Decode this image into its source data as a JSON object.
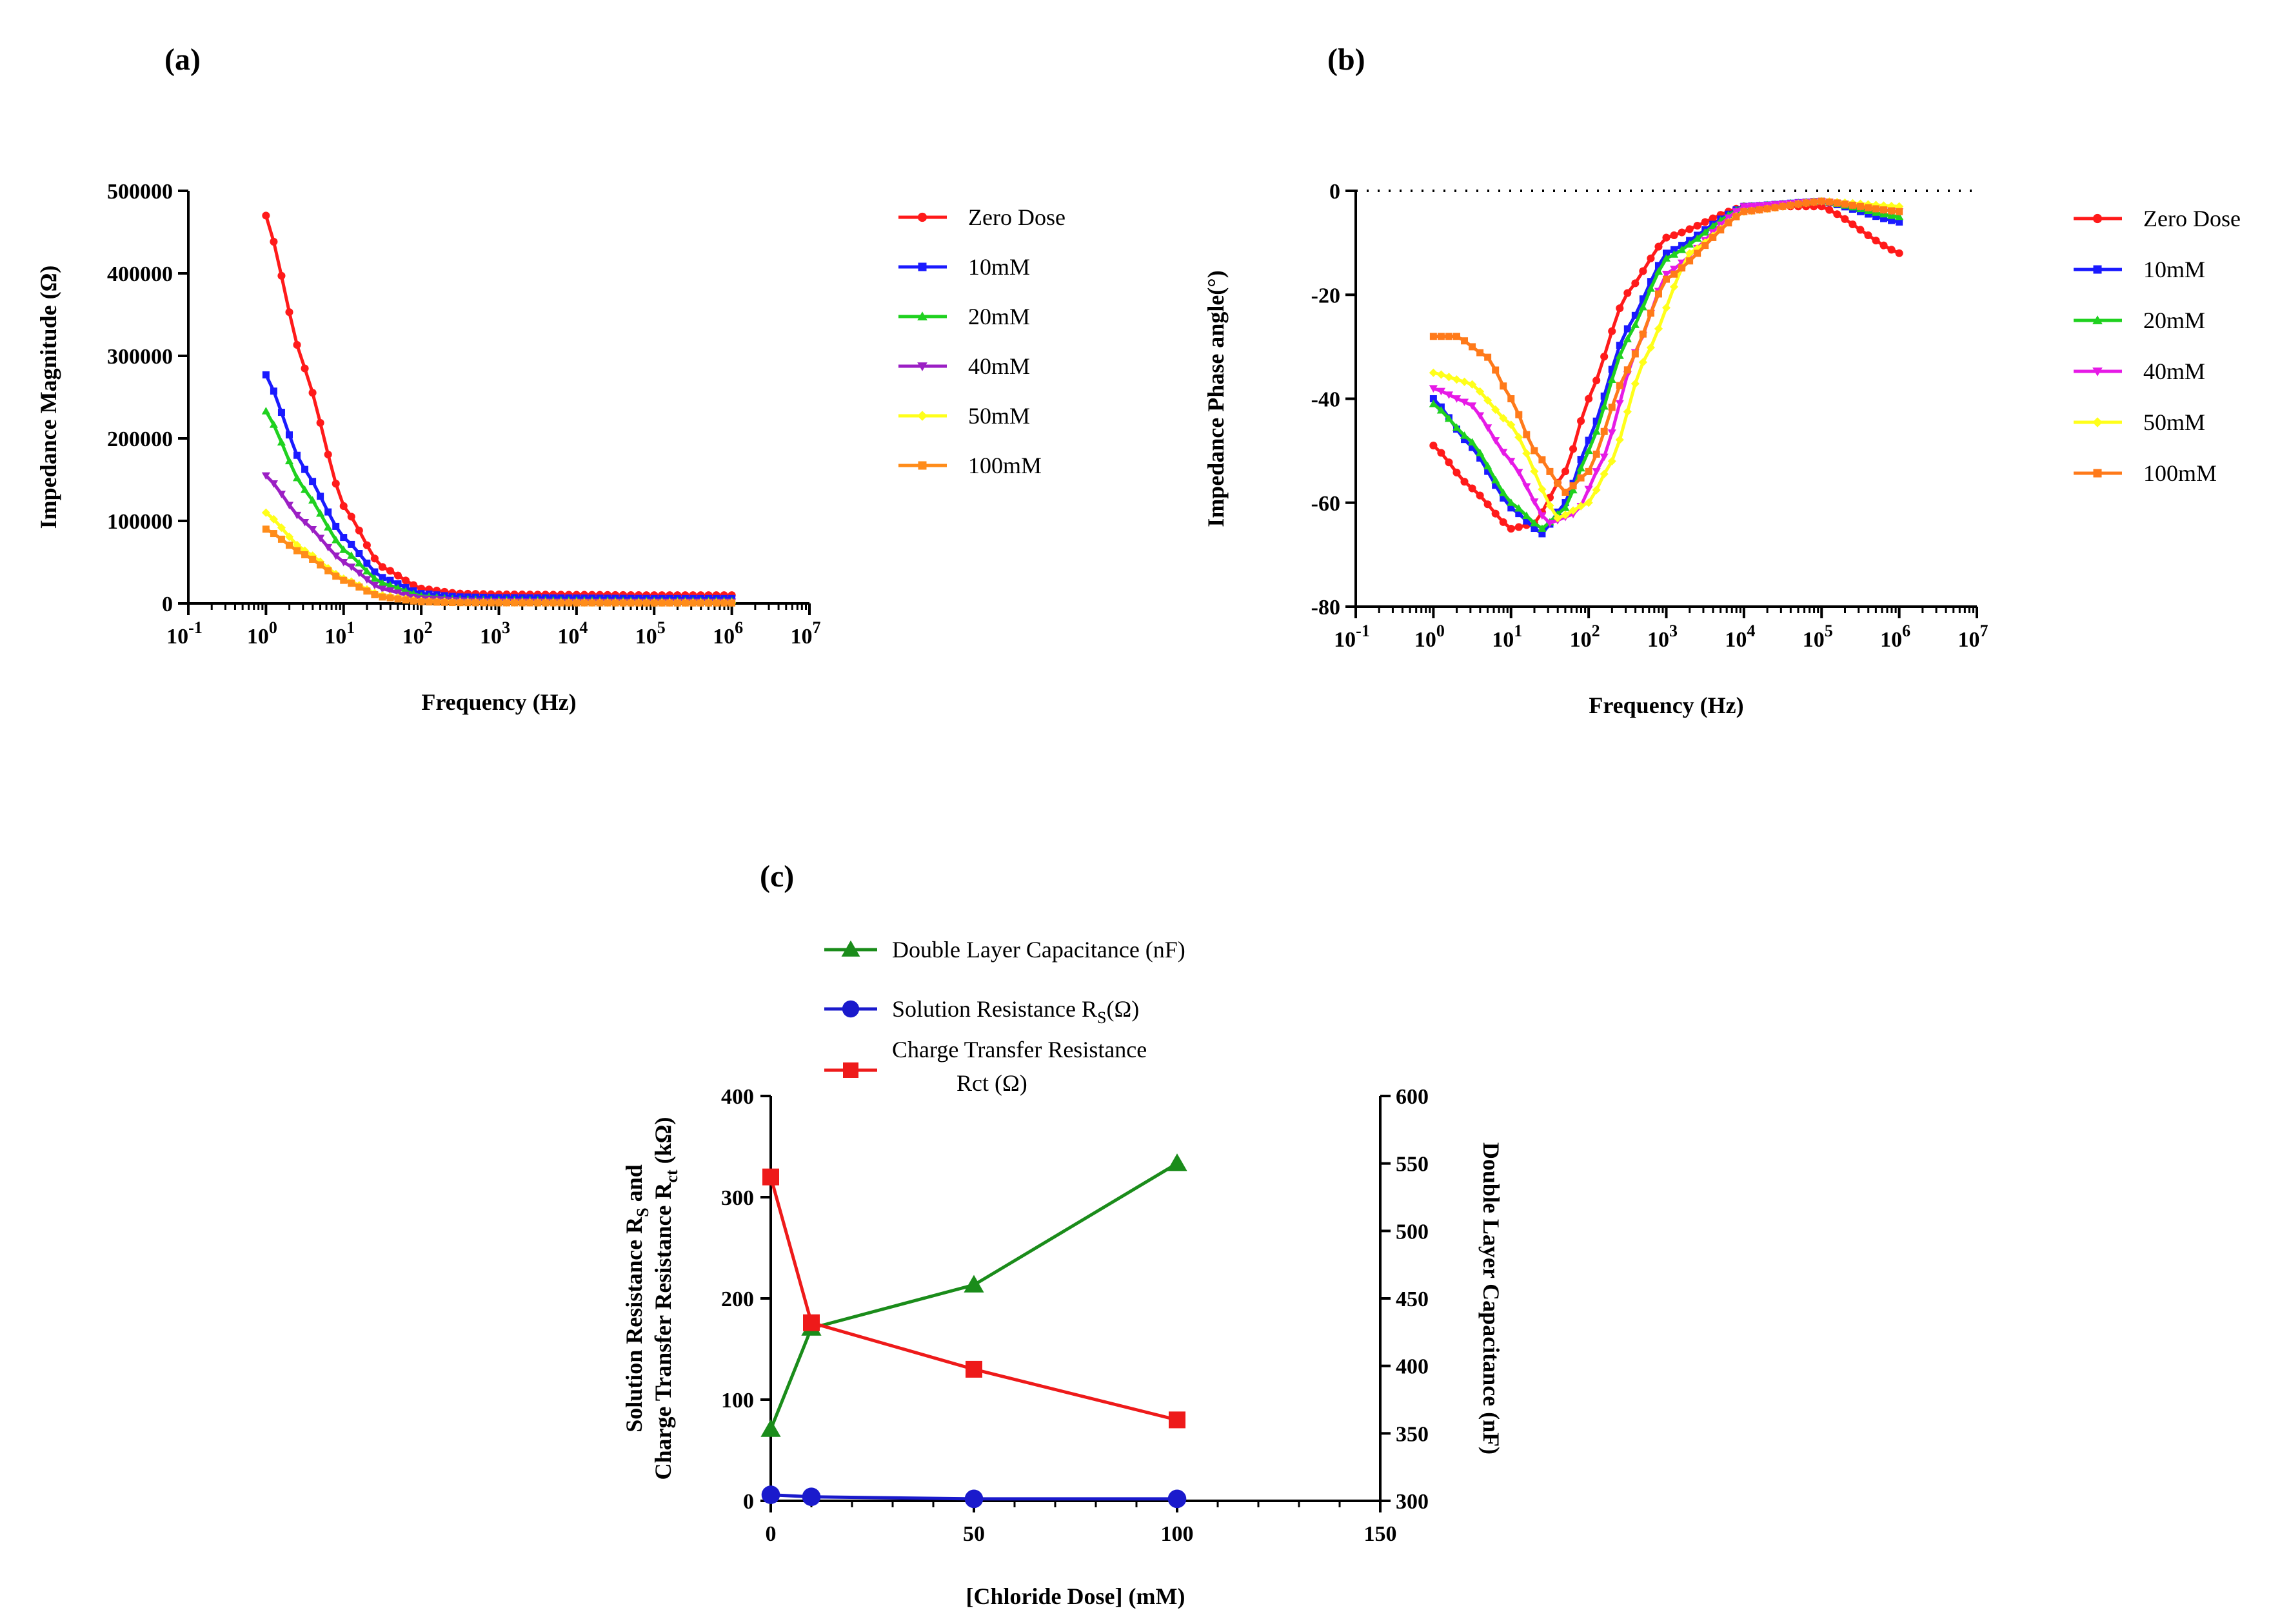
{
  "figure": {
    "panels": [
      "(a)",
      "(b)",
      "(c)"
    ]
  },
  "chart_data": [
    {
      "id": "a",
      "type": "line",
      "panel_label": "(a)",
      "xlabel": "Frequency (Hz)",
      "ylabel": "Impedance Magnitude (Ω)",
      "xscale": "log",
      "xlim": [
        0.1,
        10000000
      ],
      "ylim": [
        0,
        500000
      ],
      "x_ticks": [
        {
          "base": "10",
          "exp": "-1"
        },
        {
          "base": "10",
          "exp": "0"
        },
        {
          "base": "10",
          "exp": "1"
        },
        {
          "base": "10",
          "exp": "2"
        },
        {
          "base": "10",
          "exp": "3"
        },
        {
          "base": "10",
          "exp": "4"
        },
        {
          "base": "10",
          "exp": "5"
        },
        {
          "base": "10",
          "exp": "6"
        },
        {
          "base": "10",
          "exp": "7"
        }
      ],
      "y_ticks": [
        "0",
        "100000",
        "200000",
        "300000",
        "400000",
        "500000"
      ],
      "legend_position": "right",
      "series": [
        {
          "name": "Zero Dose",
          "color": "#ff1a1a",
          "marker": "circle",
          "x": [
            1,
            3,
            10,
            30,
            100,
            300,
            1000,
            10000,
            100000,
            1000000
          ],
          "y": [
            470000,
            290000,
            118000,
            45000,
            18000,
            12000,
            11000,
            10500,
            10000,
            10000
          ]
        },
        {
          "name": "10mM",
          "color": "#1a1aff",
          "marker": "square",
          "x": [
            1,
            3,
            10,
            30,
            100,
            300,
            1000,
            10000,
            100000,
            1000000
          ],
          "y": [
            277000,
            165000,
            80000,
            32000,
            12000,
            8000,
            7000,
            6500,
            6000,
            6000
          ]
        },
        {
          "name": "20mM",
          "color": "#1fd11f",
          "marker": "triangle",
          "x": [
            1,
            3,
            10,
            30,
            100,
            300,
            1000,
            10000,
            100000,
            1000000
          ],
          "y": [
            233000,
            140000,
            65000,
            25000,
            9000,
            5000,
            4000,
            3500,
            3000,
            3000
          ]
        },
        {
          "name": "40mM",
          "color": "#9b1fc4",
          "marker": "triangle-down",
          "x": [
            1,
            3,
            10,
            30,
            100,
            300,
            1000,
            10000,
            100000,
            1000000
          ],
          "y": [
            155000,
            100000,
            50000,
            18000,
            6000,
            3500,
            2500,
            2000,
            2000,
            2000
          ]
        },
        {
          "name": "50mM",
          "color": "#ffff1a",
          "marker": "diamond",
          "x": [
            1,
            3,
            10,
            30,
            100,
            300,
            1000,
            10000,
            100000,
            1000000
          ],
          "y": [
            110000,
            65000,
            30000,
            10000,
            3000,
            1500,
            1200,
            1000,
            1000,
            1000
          ]
        },
        {
          "name": "100mM",
          "color": "#ff8c1a",
          "marker": "square",
          "x": [
            1,
            3,
            10,
            30,
            100,
            300,
            1000,
            10000,
            100000,
            1000000
          ],
          "y": [
            90000,
            60000,
            28000,
            8000,
            2000,
            1000,
            800,
            700,
            600,
            600
          ]
        }
      ]
    },
    {
      "id": "b",
      "type": "line",
      "panel_label": "(b)",
      "xlabel": "Frequency (Hz)",
      "ylabel": "Impedance Phase angle(°)",
      "xscale": "log",
      "xlim": [
        0.1,
        10000000
      ],
      "ylim": [
        -80,
        0
      ],
      "x_ticks": [
        {
          "base": "10",
          "exp": "-1"
        },
        {
          "base": "10",
          "exp": "0"
        },
        {
          "base": "10",
          "exp": "1"
        },
        {
          "base": "10",
          "exp": "2"
        },
        {
          "base": "10",
          "exp": "3"
        },
        {
          "base": "10",
          "exp": "4"
        },
        {
          "base": "10",
          "exp": "5"
        },
        {
          "base": "10",
          "exp": "6"
        },
        {
          "base": "10",
          "exp": "7"
        }
      ],
      "y_ticks": [
        "-80",
        "-60",
        "-40",
        "-20",
        "0"
      ],
      "zero_reference_line": true,
      "legend_position": "right",
      "series": [
        {
          "name": "Zero Dose",
          "color": "#ff1a1a",
          "marker": "circle",
          "x": [
            1,
            3,
            10,
            20,
            50,
            100,
            300,
            1000,
            10000,
            100000,
            1000000
          ],
          "y": [
            -49,
            -57,
            -65,
            -64,
            -54,
            -40,
            -20,
            -9,
            -3,
            -3,
            -12
          ]
        },
        {
          "name": "10mM",
          "color": "#1a1aff",
          "marker": "square",
          "x": [
            1,
            3,
            10,
            25,
            50,
            100,
            300,
            1000,
            10000,
            100000,
            1000000
          ],
          "y": [
            -40,
            -49,
            -61,
            -66,
            -60,
            -48,
            -27,
            -12,
            -3,
            -2,
            -6
          ]
        },
        {
          "name": "20mM",
          "color": "#1fd11f",
          "marker": "triangle",
          "x": [
            1,
            3,
            10,
            25,
            50,
            100,
            300,
            1000,
            10000,
            100000,
            1000000
          ],
          "y": [
            -41,
            -48,
            -60,
            -65,
            -61,
            -50,
            -29,
            -13,
            -3,
            -2,
            -5
          ]
        },
        {
          "name": "40mM",
          "color": "#e61ae6",
          "marker": "triangle-down",
          "x": [
            1,
            3,
            10,
            30,
            70,
            150,
            400,
            1000,
            10000,
            100000,
            1000000
          ],
          "y": [
            -38,
            -41,
            -52,
            -64,
            -62,
            -52,
            -31,
            -16,
            -3,
            -2,
            -4
          ]
        },
        {
          "name": "50mM",
          "color": "#ffff1a",
          "marker": "diamond",
          "x": [
            1,
            3,
            10,
            40,
            100,
            200,
            500,
            2000,
            10000,
            100000,
            1000000
          ],
          "y": [
            -35,
            -37,
            -45,
            -63,
            -60,
            -52,
            -33,
            -12,
            -4,
            -2,
            -3
          ]
        },
        {
          "name": "100mM",
          "color": "#ff7a1a",
          "marker": "square",
          "x": [
            1,
            2,
            5,
            10,
            20,
            50,
            100,
            300,
            1000,
            10000,
            100000,
            1000000
          ],
          "y": [
            -28,
            -28,
            -32,
            -40,
            -50,
            -58,
            -54,
            -35,
            -17,
            -4,
            -2,
            -4
          ]
        }
      ]
    },
    {
      "id": "c",
      "type": "line",
      "panel_label": "(c)",
      "xlabel": "[Chloride Dose] (mM)",
      "ylabel_left_line1": "Solution Resistance R",
      "ylabel_left_sub1": "S",
      "ylabel_left_line1_end": " and",
      "ylabel_left_line2": "Charge Transfer Resistance R",
      "ylabel_left_sub2": "ct",
      "ylabel_left_line2_end": " (kΩ)",
      "ylabel_right": "Double Layer Capacitance (nF)",
      "xlim": [
        0,
        150
      ],
      "ylim_left": [
        0,
        400
      ],
      "ylim_right": [
        300,
        600
      ],
      "x_ticks": [
        "0",
        "50",
        "100",
        "150"
      ],
      "y_ticks_left": [
        "0",
        "100",
        "200",
        "300",
        "400"
      ],
      "y_ticks_right": [
        "300",
        "350",
        "400",
        "450",
        "500",
        "550",
        "600"
      ],
      "legend_position": "top",
      "series": [
        {
          "name": "Double Layer Capacitance (nF)",
          "axis": "right",
          "color": "#1a8c1a",
          "marker": "triangle",
          "x": [
            0,
            10,
            50,
            100
          ],
          "y": [
            353,
            428,
            460,
            550
          ]
        },
        {
          "name": "Solution Resistance R",
          "name_sub": "S",
          "name_end": "(Ω)",
          "axis": "left",
          "color": "#1a1acc",
          "marker": "circle",
          "x": [
            0,
            10,
            50,
            100
          ],
          "y": [
            6,
            4,
            2,
            2
          ]
        },
        {
          "name": "Charge Transfer Resistance",
          "name_line2": "Rct (Ω)",
          "axis": "left",
          "color": "#ee1a1a",
          "marker": "square",
          "x": [
            0,
            10,
            50,
            100
          ],
          "y": [
            320,
            176,
            130,
            80
          ]
        }
      ]
    }
  ]
}
